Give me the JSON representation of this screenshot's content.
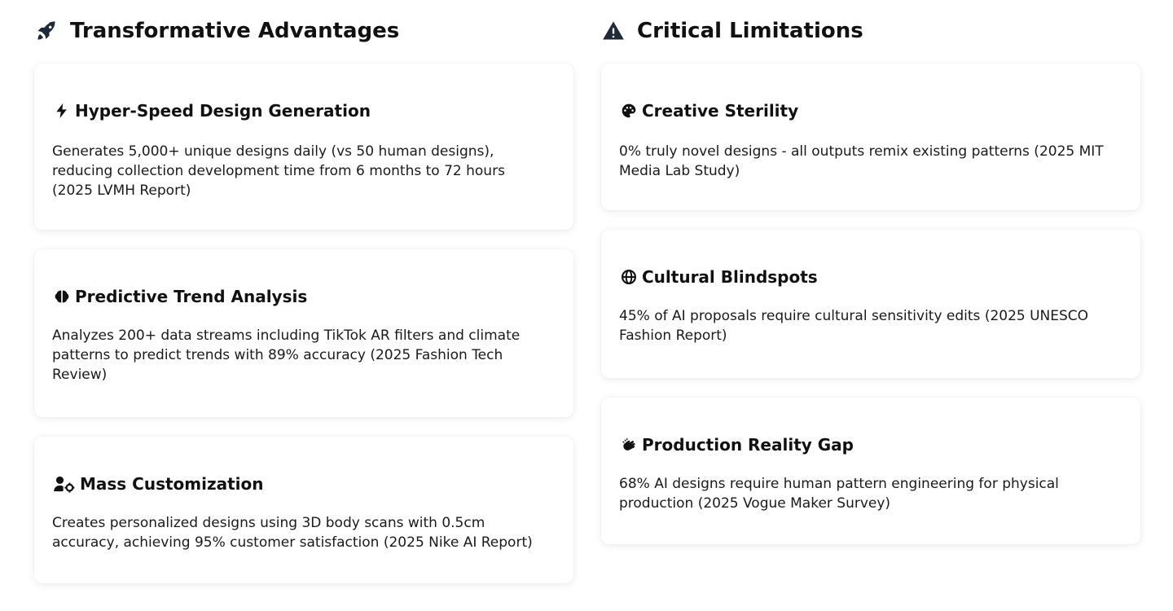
{
  "advantages": {
    "title": "Transformative Advantages",
    "icon": "rocket-icon",
    "items": [
      {
        "icon": "bolt-icon",
        "title": "Hyper-Speed Design Generation",
        "text": "Generates 5,000+ unique designs daily (vs 50 human designs), reducing collection development time from 6 months to 72 hours (2025 LVMH Report)"
      },
      {
        "icon": "brain-icon",
        "title": "Predictive Trend Analysis",
        "text": "Analyzes 200+ data streams including TikTok AR filters and climate patterns to predict trends with 89% accuracy (2025 Fashion Tech Review)"
      },
      {
        "icon": "user-gear-icon",
        "title": "Mass Customization",
        "text": "Creates personalized designs using 3D body scans with 0.5cm accuracy, achieving 95% customer satisfaction (2025 Nike AI Report)"
      }
    ]
  },
  "limitations": {
    "title": "Critical Limitations",
    "icon": "warning-icon",
    "items": [
      {
        "icon": "palette-icon",
        "title": "Creative Sterility",
        "text": "0% truly novel designs - all outputs remix existing patterns (2025 MIT Media Lab Study)"
      },
      {
        "icon": "globe-icon",
        "title": "Cultural Blindspots",
        "text": "45% of AI proposals require cultural sensitivity edits (2025 UNESCO Fashion Report)"
      },
      {
        "icon": "hands-icon",
        "title": "Production Reality Gap",
        "text": "68% AI designs require human pattern engineering for physical production (2025 Vogue Maker Survey)"
      }
    ]
  }
}
